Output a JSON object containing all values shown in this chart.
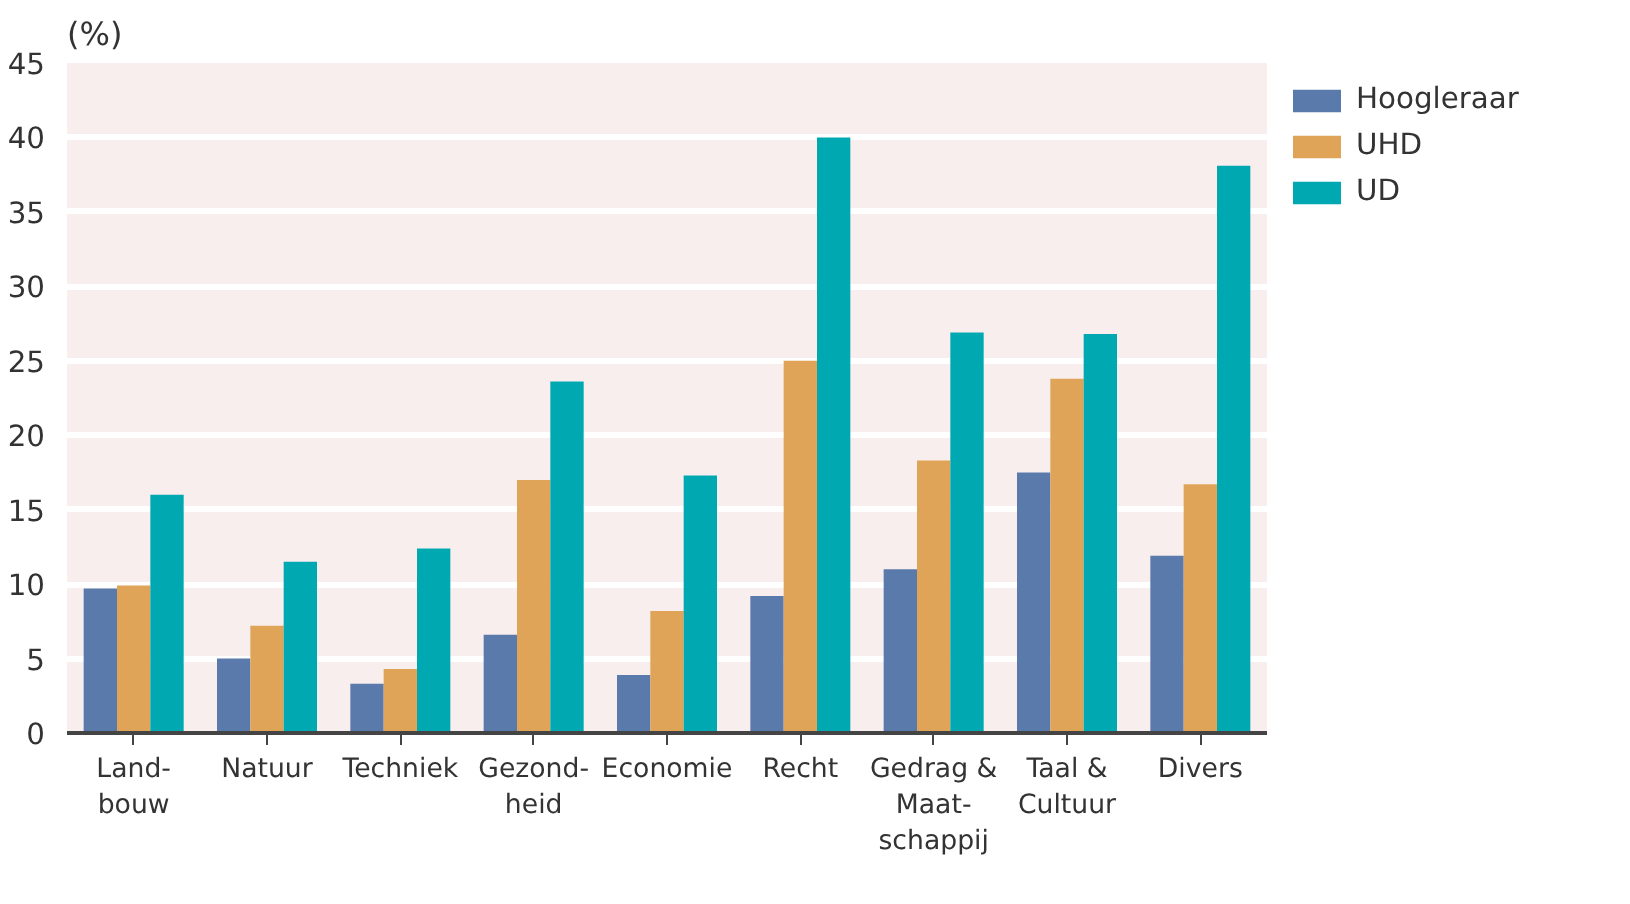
{
  "chart_data": {
    "type": "bar",
    "ylabel": "(%)",
    "categories": [
      "Land-\nbouw",
      "Natuur",
      "Techniek",
      "Gezond-\nheid",
      "Economie",
      "Recht",
      "Gedrag &\nMaat-\nschappij",
      "Taal &\nCultuur",
      "Divers"
    ],
    "series": [
      {
        "name": "Hoogleraar",
        "color": "#5a7aab",
        "values": [
          9.7,
          5.0,
          3.3,
          6.6,
          3.9,
          9.2,
          11.0,
          17.5,
          11.9
        ]
      },
      {
        "name": "UHD",
        "color": "#e0a458",
        "values": [
          9.9,
          7.2,
          4.3,
          17.0,
          8.2,
          25.0,
          18.3,
          23.8,
          16.7
        ]
      },
      {
        "name": "UD",
        "color": "#00a9b2",
        "values": [
          16.0,
          11.5,
          12.4,
          23.6,
          17.3,
          40.0,
          26.9,
          26.8,
          38.1
        ]
      }
    ],
    "ylim": [
      0,
      45
    ],
    "yticks": [
      0,
      5,
      10,
      15,
      20,
      25,
      30,
      35,
      40,
      45
    ],
    "grid": "y",
    "legend": "right"
  }
}
